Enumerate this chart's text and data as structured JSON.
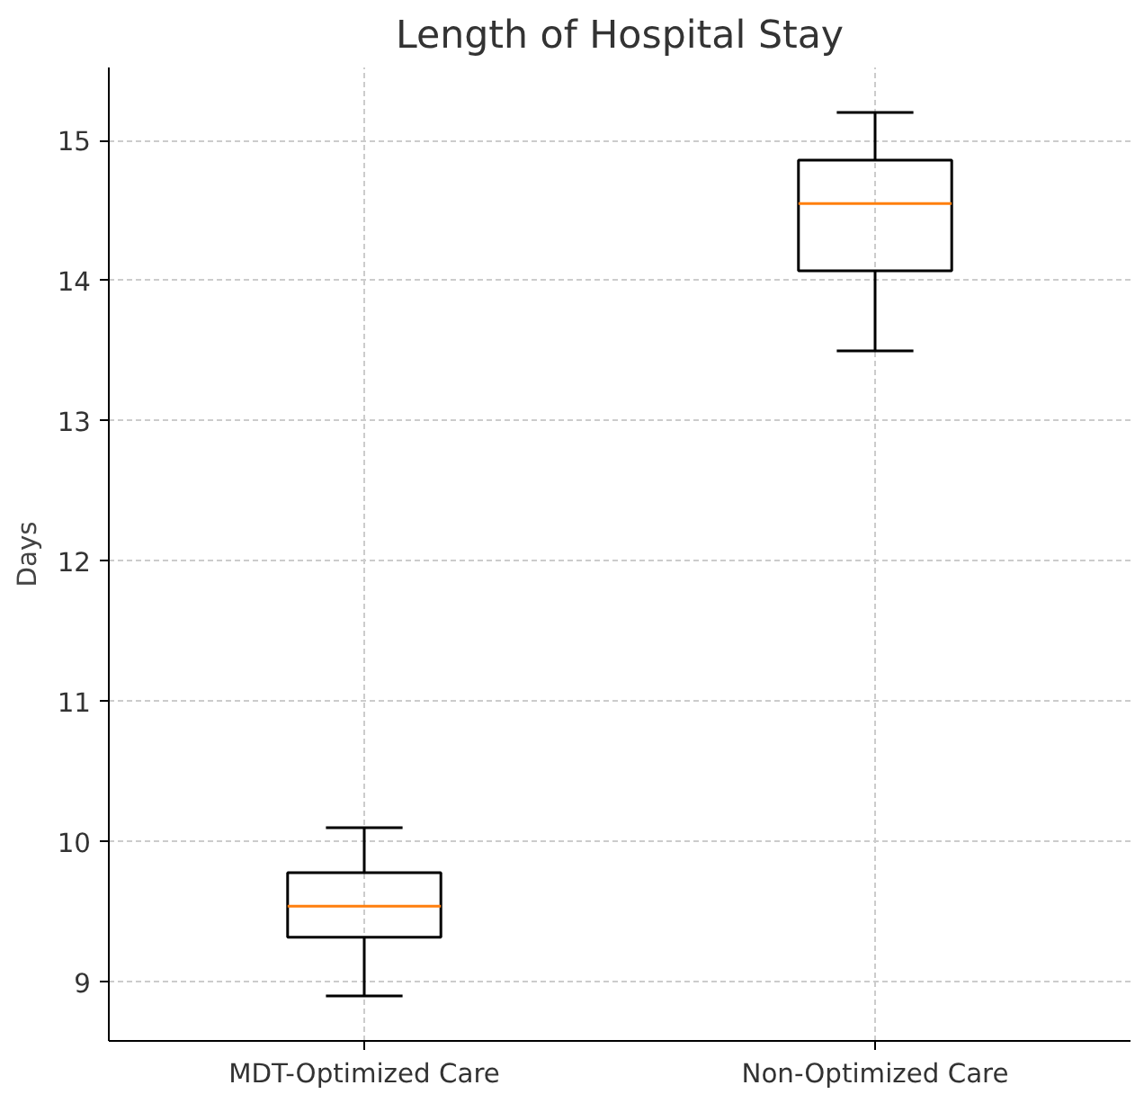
{
  "chart_data": {
    "type": "box",
    "title": "Length of Hospital Stay",
    "ylabel": "Days",
    "categories": [
      "MDT-Optimized Care",
      "Non-Optimized Care"
    ],
    "boxes": [
      {
        "low": 8.9,
        "q1": 9.32,
        "median": 9.54,
        "q3": 9.78,
        "high": 10.1
      },
      {
        "low": 13.5,
        "q1": 14.07,
        "median": 14.55,
        "q3": 14.86,
        "high": 15.2
      }
    ],
    "ylim": [
      8.58,
      15.52
    ],
    "yticks": [
      9,
      10,
      11,
      12,
      13,
      14,
      15
    ],
    "grid": true
  }
}
